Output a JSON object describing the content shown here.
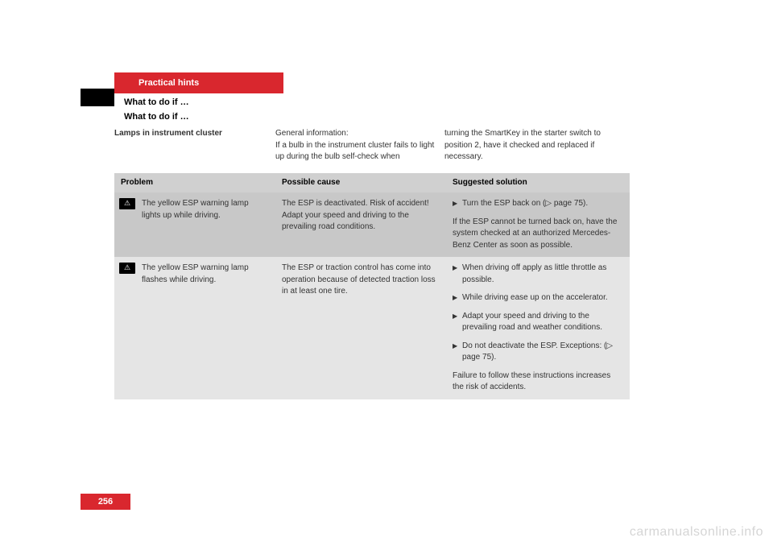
{
  "header": {
    "chapter": "Practical hints",
    "section": "What to do if …",
    "section_repeat": "What to do if …",
    "subheading": "Lamps in instrument cluster"
  },
  "intro": {
    "col2_line1": "General information:",
    "col2_line2": "If a bulb in the instrument cluster fails to light up during the bulb self-check when",
    "col3": "turning the SmartKey in the starter switch to position 2, have it checked and replaced if necessary."
  },
  "table": {
    "headers": {
      "problem": "Problem",
      "cause": "Possible cause",
      "solution": "Suggested solution"
    },
    "row1": {
      "problem": "The yellow ESP warning lamp lights up while driving.",
      "cause": "The ESP is deactivated. Risk of accident! Adapt your speed and driving to the prevailing road conditions.",
      "solution_bullet1": "Turn the ESP back on (▷ page 75).",
      "solution_text": "If the ESP cannot be turned back on, have the system checked at an authorized Mercedes-Benz Center as soon as possible."
    },
    "row2": {
      "problem": "The yellow ESP warning lamp flashes while driving.",
      "cause": "The ESP or traction control has come into operation because of detected traction loss in at least one tire.",
      "solution_bullet1": "When driving off apply as little throttle as possible.",
      "solution_bullet2": "While driving ease up on the accelerator.",
      "solution_bullet3": "Adapt your speed and driving to the prevailing road and weather conditions.",
      "solution_bullet4": "Do not deactivate the ESP. Exceptions: (▷ page 75).",
      "solution_text": "Failure to follow these instructions increases the risk of accidents."
    }
  },
  "page_number": "256",
  "watermark": "carmanualsonline.info"
}
